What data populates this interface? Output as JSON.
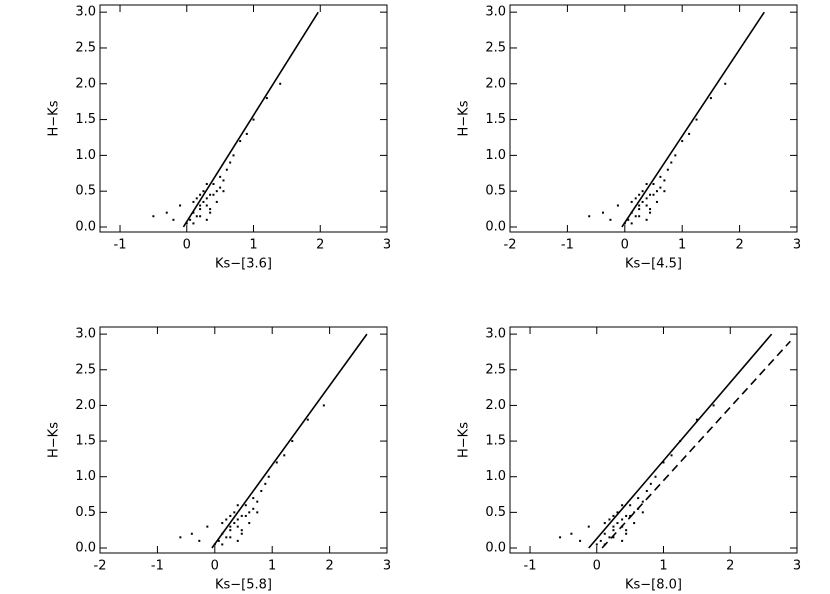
{
  "chart_data": [
    {
      "type": "scatter",
      "x_label": "Ks−[3.6]",
      "y_label": "H−Ks",
      "xlim": [
        -1.3,
        3
      ],
      "ylim": [
        -0.07,
        3.1
      ],
      "xticks": [
        -1,
        0,
        1,
        2,
        3
      ],
      "yticks": [
        {
          "value": 0,
          "label": "0.0"
        },
        0.5,
        {
          "value": 1,
          "label": "1.0"
        },
        1.5,
        {
          "value": 2,
          "label": "2.0"
        },
        2.5,
        {
          "value": 3,
          "label": "3.0"
        }
      ],
      "series": [
        {
          "style": "points",
          "color": "#000000",
          "x": [
            0.1,
            0.2,
            0.3,
            0.15,
            0.25,
            0.35,
            0.4,
            0.05,
            0.5,
            0.45,
            0.2,
            0.3,
            0.1,
            0.55,
            0.6,
            0.0,
            -0.1,
            0.25,
            0.35,
            0.15,
            0.4,
            0.5,
            0.3,
            0.2,
            0.65,
            0.7,
            0.8,
            0.9,
            1.0,
            -0.3,
            -0.5,
            0.45,
            0.1,
            0.3,
            0.2,
            0.55,
            1.2,
            1.4,
            -0.2,
            0.35
          ],
          "values": [
            0.2,
            0.3,
            0.4,
            0.15,
            0.35,
            0.45,
            0.6,
            0.1,
            0.7,
            0.5,
            0.25,
            0.3,
            0.35,
            0.65,
            0.8,
            0.05,
            0.3,
            0.5,
            0.2,
            0.4,
            0.45,
            0.55,
            0.6,
            0.15,
            0.9,
            1.0,
            1.2,
            1.3,
            1.5,
            0.2,
            0.15,
            0.35,
            0.05,
            0.1,
            0.45,
            0.5,
            1.8,
            2.0,
            0.1,
            0.25
          ]
        },
        {
          "style": "line",
          "color": "#000000",
          "x": [
            -0.05,
            1.97
          ],
          "values": [
            0,
            3.0
          ]
        }
      ]
    },
    {
      "type": "scatter",
      "x_label": "Ks−[4.5]",
      "y_label": "H−Ks",
      "xlim": [
        -2,
        3
      ],
      "ylim": [
        -0.07,
        3.1
      ],
      "xticks": [
        -2,
        -1,
        0,
        1,
        2,
        3
      ],
      "yticks": [
        {
          "value": 0,
          "label": "0.0"
        },
        0.5,
        {
          "value": 1,
          "label": "1.0"
        },
        1.5,
        {
          "value": 2,
          "label": "2.0"
        },
        2.5,
        {
          "value": 3,
          "label": "3.0"
        }
      ],
      "series": [
        {
          "style": "points",
          "color": "#000000",
          "x": [
            0.12,
            0.25,
            0.38,
            0.19,
            0.31,
            0.44,
            0.5,
            0.06,
            0.62,
            0.56,
            0.25,
            0.38,
            0.12,
            0.69,
            0.75,
            0.0,
            -0.12,
            0.31,
            0.44,
            0.19,
            0.5,
            0.62,
            0.38,
            0.25,
            0.81,
            0.88,
            1.0,
            1.12,
            1.25,
            -0.38,
            -0.62,
            0.56,
            0.12,
            0.38,
            0.25,
            0.69,
            1.5,
            1.75,
            -0.25,
            0.44
          ],
          "values": [
            0.2,
            0.3,
            0.4,
            0.15,
            0.35,
            0.45,
            0.6,
            0.1,
            0.7,
            0.5,
            0.25,
            0.3,
            0.35,
            0.65,
            0.8,
            0.05,
            0.3,
            0.5,
            0.2,
            0.4,
            0.45,
            0.55,
            0.6,
            0.15,
            0.9,
            1.0,
            1.2,
            1.3,
            1.5,
            0.2,
            0.15,
            0.35,
            0.05,
            0.1,
            0.45,
            0.5,
            1.8,
            2.0,
            0.1,
            0.25
          ]
        },
        {
          "style": "line",
          "color": "#000000",
          "x": [
            -0.05,
            2.43
          ],
          "values": [
            0,
            3.0
          ]
        }
      ]
    },
    {
      "type": "scatter",
      "x_label": "Ks−[5.8]",
      "y_label": "H−Ks",
      "xlim": [
        -2,
        3
      ],
      "ylim": [
        -0.07,
        3.1
      ],
      "xticks": [
        -2,
        -1,
        0,
        1,
        2,
        3
      ],
      "yticks": [
        {
          "value": 0,
          "label": "0.0"
        },
        0.5,
        {
          "value": 1,
          "label": "1.0"
        },
        1.5,
        {
          "value": 2,
          "label": "2.0"
        },
        2.5,
        {
          "value": 3,
          "label": "3.0"
        }
      ],
      "series": [
        {
          "style": "points",
          "color": "#000000",
          "x": [
            0.13,
            0.27,
            0.4,
            0.2,
            0.34,
            0.47,
            0.54,
            0.07,
            0.67,
            0.6,
            0.27,
            0.4,
            0.13,
            0.74,
            0.81,
            0.0,
            -0.13,
            0.34,
            0.47,
            0.2,
            0.54,
            0.67,
            0.4,
            0.27,
            0.88,
            0.94,
            1.08,
            1.21,
            1.35,
            -0.4,
            -0.6,
            0.6,
            0.13,
            0.4,
            0.27,
            0.74,
            1.62,
            1.9,
            -0.27,
            0.47
          ],
          "values": [
            0.2,
            0.3,
            0.4,
            0.15,
            0.35,
            0.45,
            0.6,
            0.1,
            0.7,
            0.5,
            0.25,
            0.3,
            0.35,
            0.65,
            0.8,
            0.05,
            0.3,
            0.5,
            0.2,
            0.4,
            0.45,
            0.55,
            0.6,
            0.15,
            0.9,
            1.0,
            1.2,
            1.3,
            1.5,
            0.2,
            0.15,
            0.35,
            0.05,
            0.1,
            0.45,
            0.5,
            1.8,
            2.0,
            0.1,
            0.25
          ]
        },
        {
          "style": "line",
          "color": "#000000",
          "x": [
            -0.05,
            2.65
          ],
          "values": [
            0,
            3.0
          ]
        }
      ]
    },
    {
      "type": "scatter",
      "x_label": "Ks−[8.0]",
      "y_label": "H−Ks",
      "xlim": [
        -1.3,
        3
      ],
      "ylim": [
        -0.07,
        3.1
      ],
      "xticks": [
        -1,
        0,
        1,
        2,
        3
      ],
      "yticks": [
        {
          "value": 0,
          "label": "0.0"
        },
        0.5,
        {
          "value": 1,
          "label": "1.0"
        },
        1.5,
        {
          "value": 2,
          "label": "2.0"
        },
        2.5,
        {
          "value": 3,
          "label": "3.0"
        }
      ],
      "series": [
        {
          "style": "points",
          "color": "#000000",
          "x": [
            0.12,
            0.25,
            0.38,
            0.19,
            0.31,
            0.44,
            0.5,
            0.06,
            0.62,
            0.56,
            0.25,
            0.38,
            0.12,
            0.69,
            0.75,
            0.0,
            -0.12,
            0.31,
            0.44,
            0.19,
            0.5,
            0.62,
            0.38,
            0.25,
            0.81,
            0.88,
            1.0,
            1.12,
            1.25,
            -0.38,
            -0.55,
            0.56,
            0.12,
            0.38,
            0.25,
            0.69,
            1.5,
            1.75,
            -0.25,
            0.44
          ],
          "values": [
            0.2,
            0.3,
            0.4,
            0.15,
            0.35,
            0.45,
            0.6,
            0.1,
            0.7,
            0.5,
            0.25,
            0.3,
            0.35,
            0.65,
            0.8,
            0.05,
            0.3,
            0.5,
            0.2,
            0.4,
            0.45,
            0.55,
            0.6,
            0.15,
            0.9,
            1.0,
            1.2,
            1.3,
            1.5,
            0.2,
            0.15,
            0.35,
            0.05,
            0.1,
            0.45,
            0.5,
            1.8,
            2.0,
            0.1,
            0.25
          ]
        },
        {
          "style": "line",
          "color": "#000000",
          "x": [
            -0.12,
            2.62
          ],
          "values": [
            0,
            3.0
          ]
        },
        {
          "style": "dashed",
          "color": "#000000",
          "x": [
            0.08,
            2.9
          ],
          "values": [
            0,
            2.9
          ]
        }
      ]
    }
  ]
}
